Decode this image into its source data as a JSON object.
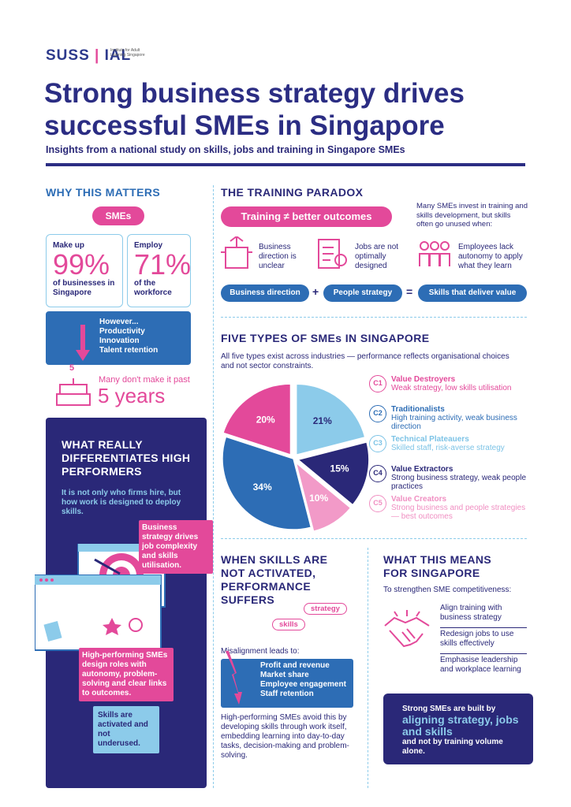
{
  "header": {
    "logo": {
      "left": "SUSS",
      "right": "IAL",
      "tagline": "Institute for Adult Learning Singapore"
    },
    "title": [
      "Strong business strategy drives",
      "successful SMEs in Singapore"
    ],
    "subtitle": "Insights from a national study on skills, jobs and training in Singapore SMEs"
  },
  "why": {
    "heading": "WHY THIS MATTERS",
    "pill": "SMEs",
    "stats": [
      {
        "lead": "Make up",
        "figure": "99%",
        "tail": "of businesses in Singapore"
      },
      {
        "lead": "Employ",
        "figure": "71%",
        "tail": "of the workforce"
      }
    ],
    "however": {
      "lead": "However...",
      "items": [
        "Productivity",
        "Innovation",
        "Talent retention"
      ]
    },
    "cake_number": "5",
    "survival": {
      "lead": "Many don't make it past",
      "figure": "5 years"
    }
  },
  "differentiates": {
    "heading": "WHAT REALLY DIFFERENTIATES HIGH PERFORMERS",
    "text": "It is not only who firms hire, but how work is designed to deploy skills.",
    "callouts": [
      "Business strategy drives job complexity and skills utilisation.",
      "High-performing SMEs design roles with autonomy, problem-solving and clear links to outcomes.",
      "Skills are activated and not underused."
    ]
  },
  "paradox": {
    "heading": "THE TRAINING PARADOX",
    "pill": "Training ≠ better outcomes",
    "text": "Many SMEs invest in training and skills development, but skills often go unused when:",
    "items": [
      "Business direction is unclear",
      "Jobs are not optimally designed",
      "Employees lack autonomy to apply what they learn"
    ],
    "equation": [
      "Business direction",
      "+",
      "People strategy",
      "=",
      "Skills that deliver value"
    ]
  },
  "types": {
    "heading": "FIVE TYPES OF SMEs IN SINGAPORE",
    "text": "All five types exist across industries — performance reflects organisational choices and not sector constraints.",
    "legend": [
      {
        "code": "C1",
        "name": "Value Destroyers",
        "desc": "Weak strategy, low skills utilisation",
        "color": "#e3499a"
      },
      {
        "code": "C2",
        "name": "Traditionalists",
        "desc": "High training activity, weak business direction",
        "color": "#2d6db5"
      },
      {
        "code": "C3",
        "name": "Technical Plateauers",
        "desc": "Skilled staff, risk-averse strategy",
        "color": "#7cc3e6"
      },
      {
        "code": "C4",
        "name": "Value Extractors",
        "desc": "Strong business strategy, weak people practices",
        "color": "#2a2878"
      },
      {
        "code": "C5",
        "name": "Value Creators",
        "desc": "Strong business and people strategies — best outcomes",
        "color": "#f08fc2"
      }
    ]
  },
  "chart_data": {
    "type": "pie",
    "values": [
      21,
      15,
      10,
      34,
      20
    ],
    "value_labels": [
      "21%",
      "15%",
      "10%",
      "34%",
      "20%"
    ],
    "colors": [
      "#8ccbea",
      "#2a2878",
      "#f29ac8",
      "#2d6db5",
      "#e3499a"
    ]
  },
  "suffers": {
    "heading": "WHEN SKILLS ARE NOT ACTIVATED, PERFORMANCE SUFFERS",
    "tags": [
      "strategy",
      "skills"
    ],
    "lead": "Misalignment leads to:",
    "items": [
      "Profit and revenue",
      "Market share",
      "Employee engagement",
      "Staff retention"
    ],
    "text": "High-performing SMEs avoid this by developing skills through work itself, embedding learning into day-to-day tasks, decision-making and problem-solving."
  },
  "means": {
    "heading": "WHAT THIS MEANS FOR SINGAPORE",
    "lead": "To strengthen SME competitiveness:",
    "items": [
      "Align training with business strategy",
      "Redesign jobs to use skills effectively",
      "Emphasise leadership and workplace learning"
    ],
    "box": {
      "lead": "Strong SMEs are built by",
      "highlight": "aligning strategy, jobs and skills",
      "tail": "and not by training volume alone."
    }
  }
}
